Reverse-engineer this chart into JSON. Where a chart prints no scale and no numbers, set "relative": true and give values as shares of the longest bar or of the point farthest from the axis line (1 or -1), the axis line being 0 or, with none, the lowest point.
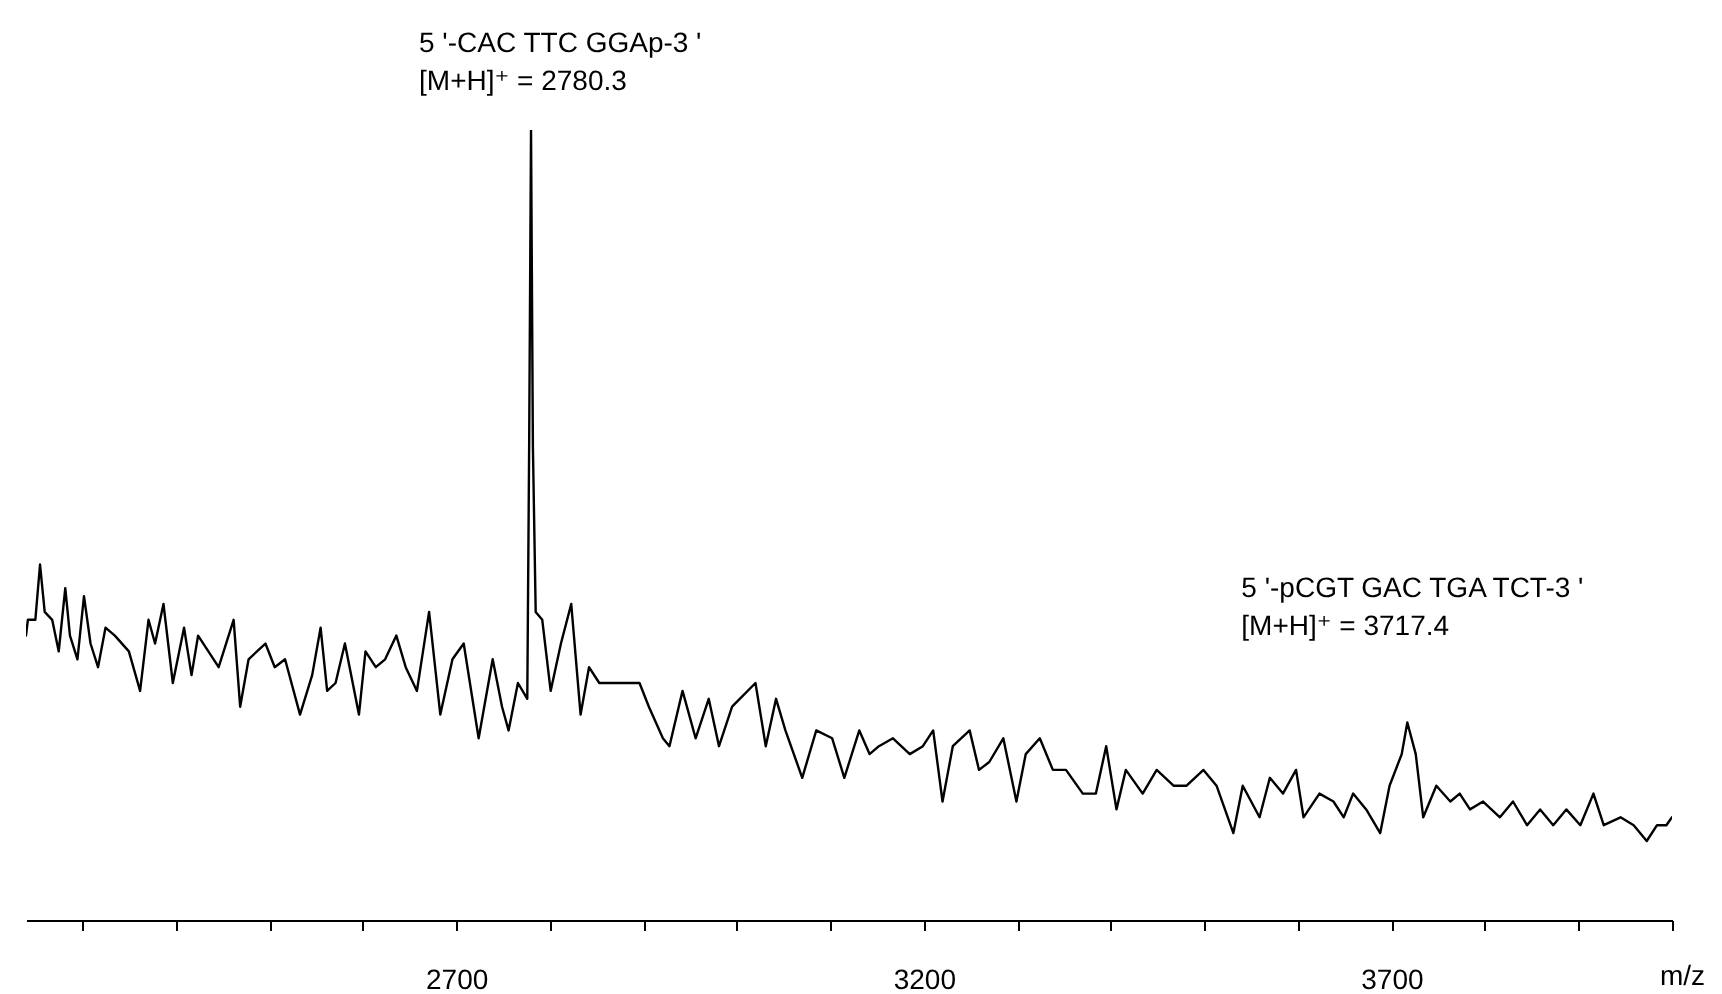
{
  "chart_data": {
    "type": "line",
    "relative": true,
    "xlabel": "m/z",
    "xlim": [
      2240,
      4000
    ],
    "xticks": [
      {
        "value": 2300,
        "label": null
      },
      {
        "value": 2400,
        "label": null
      },
      {
        "value": 2500,
        "label": null
      },
      {
        "value": 2600,
        "label": null
      },
      2700,
      {
        "value": 2800,
        "label": null
      },
      {
        "value": 2900,
        "label": null
      },
      {
        "value": 3000,
        "label": null
      },
      {
        "value": 3100,
        "label": null
      },
      3200,
      {
        "value": 3300,
        "label": null
      },
      {
        "value": 3400,
        "label": null
      },
      {
        "value": 3500,
        "label": null
      },
      {
        "value": 3600,
        "label": null
      },
      3700,
      {
        "value": 3800,
        "label": null
      },
      {
        "value": 3900,
        "label": null
      },
      {
        "value": 4000,
        "label": null
      }
    ],
    "x": [
      2240,
      2242,
      2250,
      2255,
      2260,
      2268,
      2275,
      2282,
      2287,
      2295,
      2302,
      2309,
      2317,
      2325,
      2335,
      2350,
      2362,
      2371,
      2378,
      2387,
      2397,
      2409,
      2417,
      2424,
      2435,
      2446,
      2462,
      2469,
      2478,
      2496,
      2506,
      2517,
      2533,
      2546,
      2555,
      2562,
      2571,
      2581,
      2596,
      2603,
      2614,
      2624,
      2636,
      2646,
      2658,
      2671,
      2683,
      2696,
      2708,
      2724,
      2739,
      2749,
      2756,
      2766,
      2776,
      2778,
      2780,
      2782,
      2785,
      2792,
      2801,
      2812,
      2823,
      2833,
      2842,
      2853,
      2874,
      2896,
      2906,
      2921,
      2928,
      2942,
      2956,
      2970,
      2981,
      2995,
      3020,
      3031,
      3042,
      3052,
      3070,
      3085,
      3102,
      3115,
      3131,
      3142,
      3152,
      3167,
      3185,
      3199,
      3210,
      3220,
      3231,
      3249,
      3259,
      3270,
      3285,
      3299,
      3309,
      3324,
      3338,
      3352,
      3370,
      3384,
      3395,
      3406,
      3416,
      3434,
      3449,
      3467,
      3481,
      3499,
      3513,
      3531,
      3541,
      3559,
      3570,
      3584,
      3598,
      3606,
      3623,
      3638,
      3649,
      3659,
      3673,
      3688,
      3698,
      3711,
      3717,
      3726,
      3734,
      3748,
      3763,
      3773,
      3784,
      3798,
      3816,
      3830,
      3845,
      3859,
      3873,
      3887,
      3902,
      3916,
      3927,
      3945,
      3959,
      3973,
      3984,
      3994,
      4000
    ],
    "series": [
      {
        "color": "#000000",
        "values": [
          0.36,
          0.38,
          0.38,
          0.45,
          0.39,
          0.38,
          0.34,
          0.42,
          0.36,
          0.33,
          0.41,
          0.35,
          0.32,
          0.37,
          0.36,
          0.34,
          0.29,
          0.38,
          0.35,
          0.4,
          0.3,
          0.37,
          0.31,
          0.36,
          0.34,
          0.32,
          0.38,
          0.27,
          0.33,
          0.35,
          0.32,
          0.33,
          0.26,
          0.31,
          0.37,
          0.29,
          0.3,
          0.35,
          0.26,
          0.34,
          0.32,
          0.33,
          0.36,
          0.32,
          0.29,
          0.39,
          0.26,
          0.33,
          0.35,
          0.23,
          0.33,
          0.27,
          0.24,
          0.3,
          0.28,
          0.6,
          1.0,
          0.6,
          0.39,
          0.38,
          0.29,
          0.35,
          0.4,
          0.26,
          0.32,
          0.3,
          0.3,
          0.3,
          0.27,
          0.23,
          0.22,
          0.29,
          0.23,
          0.28,
          0.22,
          0.27,
          0.3,
          0.22,
          0.28,
          0.24,
          0.18,
          0.24,
          0.23,
          0.18,
          0.24,
          0.21,
          0.22,
          0.23,
          0.21,
          0.22,
          0.24,
          0.15,
          0.22,
          0.24,
          0.19,
          0.2,
          0.23,
          0.15,
          0.21,
          0.23,
          0.19,
          0.19,
          0.16,
          0.16,
          0.22,
          0.14,
          0.19,
          0.16,
          0.19,
          0.17,
          0.17,
          0.19,
          0.17,
          0.11,
          0.17,
          0.13,
          0.18,
          0.16,
          0.19,
          0.13,
          0.16,
          0.15,
          0.13,
          0.16,
          0.14,
          0.11,
          0.17,
          0.21,
          0.25,
          0.21,
          0.13,
          0.17,
          0.15,
          0.16,
          0.14,
          0.15,
          0.13,
          0.15,
          0.12,
          0.14,
          0.12,
          0.14,
          0.12,
          0.16,
          0.12,
          0.13,
          0.12,
          0.1,
          0.12,
          0.12,
          0.13
        ]
      }
    ],
    "annotations": [
      {
        "text": "5 '-CAC TTC GGAp-3 '\n[M+H]⁺ = 2780.3",
        "x": 2780,
        "y": 1.0
      },
      {
        "text": "5 '-pCGT GAC TGA TCT-3 '\n[M+H]⁺ = 3717.4",
        "x": 3717,
        "y": 0.25
      }
    ]
  }
}
